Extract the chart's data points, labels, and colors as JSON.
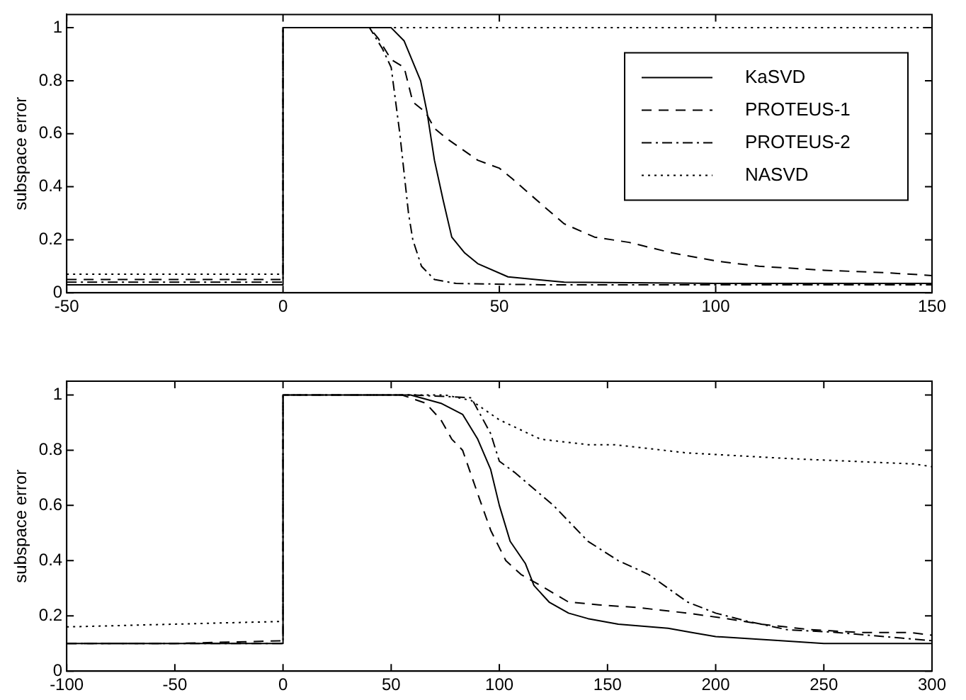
{
  "chart_data": [
    {
      "type": "line",
      "ylabel": "subspace error",
      "xlim": [
        -50,
        150
      ],
      "xticks": [
        -50,
        0,
        50,
        100,
        150
      ],
      "ylim": [
        0,
        1.05
      ],
      "yticks": [
        0,
        0.2,
        0.4,
        0.6,
        0.8,
        1
      ],
      "grid": false,
      "legend": "top right",
      "marker": "none",
      "series": [
        {
          "name": "KaSVD",
          "color": "#000000",
          "line_style": "solid",
          "x": [
            -50,
            0,
            0,
            18,
            25,
            28,
            31.8,
            33.3,
            35,
            37,
            39,
            42,
            45,
            52,
            65,
            100,
            150
          ],
          "values": [
            0.03,
            0.03,
            1,
            1,
            1,
            0.95,
            0.8,
            0.68,
            0.5,
            0.35,
            0.21,
            0.15,
            0.11,
            0.06,
            0.04,
            0.035,
            0.035
          ]
        },
        {
          "name": "PROTEUS-1",
          "color": "#000000",
          "line_style": "dashed",
          "x": [
            -50,
            0,
            0,
            20,
            22,
            25,
            28,
            30,
            33,
            35,
            38,
            45,
            50,
            53,
            60,
            65,
            72,
            80,
            90,
            100,
            110,
            125,
            140,
            150
          ],
          "values": [
            0.05,
            0.05,
            1,
            1,
            0.96,
            0.88,
            0.85,
            0.72,
            0.68,
            0.62,
            0.58,
            0.5,
            0.47,
            0.43,
            0.33,
            0.26,
            0.21,
            0.19,
            0.15,
            0.12,
            0.1,
            0.085,
            0.075,
            0.065
          ]
        },
        {
          "name": "PROTEUS-2",
          "color": "#000000",
          "line_style": "dashdot",
          "x": [
            -50,
            0,
            0,
            20,
            23,
            25,
            27,
            29,
            30,
            32,
            35,
            40,
            60,
            150
          ],
          "values": [
            0.04,
            0.04,
            1,
            1,
            0.92,
            0.85,
            0.6,
            0.3,
            0.2,
            0.1,
            0.05,
            0.035,
            0.03,
            0.03
          ]
        },
        {
          "name": "NASVD",
          "color": "#000000",
          "line_style": "dotted",
          "x": [
            -50,
            0,
            0,
            150
          ],
          "values": [
            0.07,
            0.07,
            1,
            1
          ]
        }
      ]
    },
    {
      "type": "line",
      "ylabel": "subspace error",
      "xlim": [
        -100,
        300
      ],
      "xticks": [
        -100,
        -50,
        0,
        50,
        100,
        150,
        200,
        250,
        300
      ],
      "ylim": [
        0,
        1.05
      ],
      "yticks": [
        0,
        0.2,
        0.4,
        0.6,
        0.8,
        1
      ],
      "grid": false,
      "marker": "none",
      "series": [
        {
          "color": "#000000",
          "line_style": "solid",
          "x": [
            -100,
            -50,
            0,
            0,
            59,
            73,
            83,
            90,
            96,
            100,
            105,
            112,
            116,
            123,
            132,
            141,
            155,
            178,
            189,
            200,
            230,
            250,
            300
          ],
          "values": [
            0.1,
            0.1,
            0.1,
            1,
            1,
            0.97,
            0.93,
            0.84,
            0.73,
            0.6,
            0.47,
            0.39,
            0.31,
            0.25,
            0.21,
            0.19,
            0.17,
            0.155,
            0.14,
            0.125,
            0.11,
            0.1,
            0.1
          ]
        },
        {
          "color": "#000000",
          "line_style": "dashed",
          "x": [
            -100,
            -50,
            0,
            0,
            55,
            66,
            73,
            78,
            83,
            87,
            91,
            96,
            103,
            110,
            119,
            132,
            146,
            164,
            187,
            205,
            221,
            244,
            267,
            290,
            300
          ],
          "values": [
            0.1,
            0.1,
            0.11,
            1,
            1,
            0.97,
            0.91,
            0.84,
            0.8,
            0.71,
            0.62,
            0.51,
            0.4,
            0.35,
            0.31,
            0.25,
            0.24,
            0.23,
            0.21,
            0.19,
            0.17,
            0.15,
            0.14,
            0.14,
            0.13
          ]
        },
        {
          "color": "#000000",
          "line_style": "dashdot",
          "x": [
            -100,
            -50,
            0,
            0,
            60,
            87,
            96,
            100,
            107,
            116,
            125,
            141,
            155,
            169,
            187,
            200,
            215,
            233,
            256,
            300
          ],
          "values": [
            0.1,
            0.1,
            0.1,
            1,
            1,
            0.99,
            0.86,
            0.76,
            0.72,
            0.66,
            0.6,
            0.47,
            0.4,
            0.35,
            0.25,
            0.21,
            0.18,
            0.15,
            0.14,
            0.11
          ]
        },
        {
          "color": "#000000",
          "line_style": "dotted",
          "x": [
            -100,
            -50,
            0,
            0,
            75,
            87,
            100,
            119,
            141,
            153,
            187,
            233,
            292,
            300
          ],
          "values": [
            0.16,
            0.17,
            0.18,
            1,
            1,
            0.98,
            0.91,
            0.84,
            0.82,
            0.82,
            0.79,
            0.77,
            0.75,
            0.74
          ]
        }
      ]
    }
  ]
}
